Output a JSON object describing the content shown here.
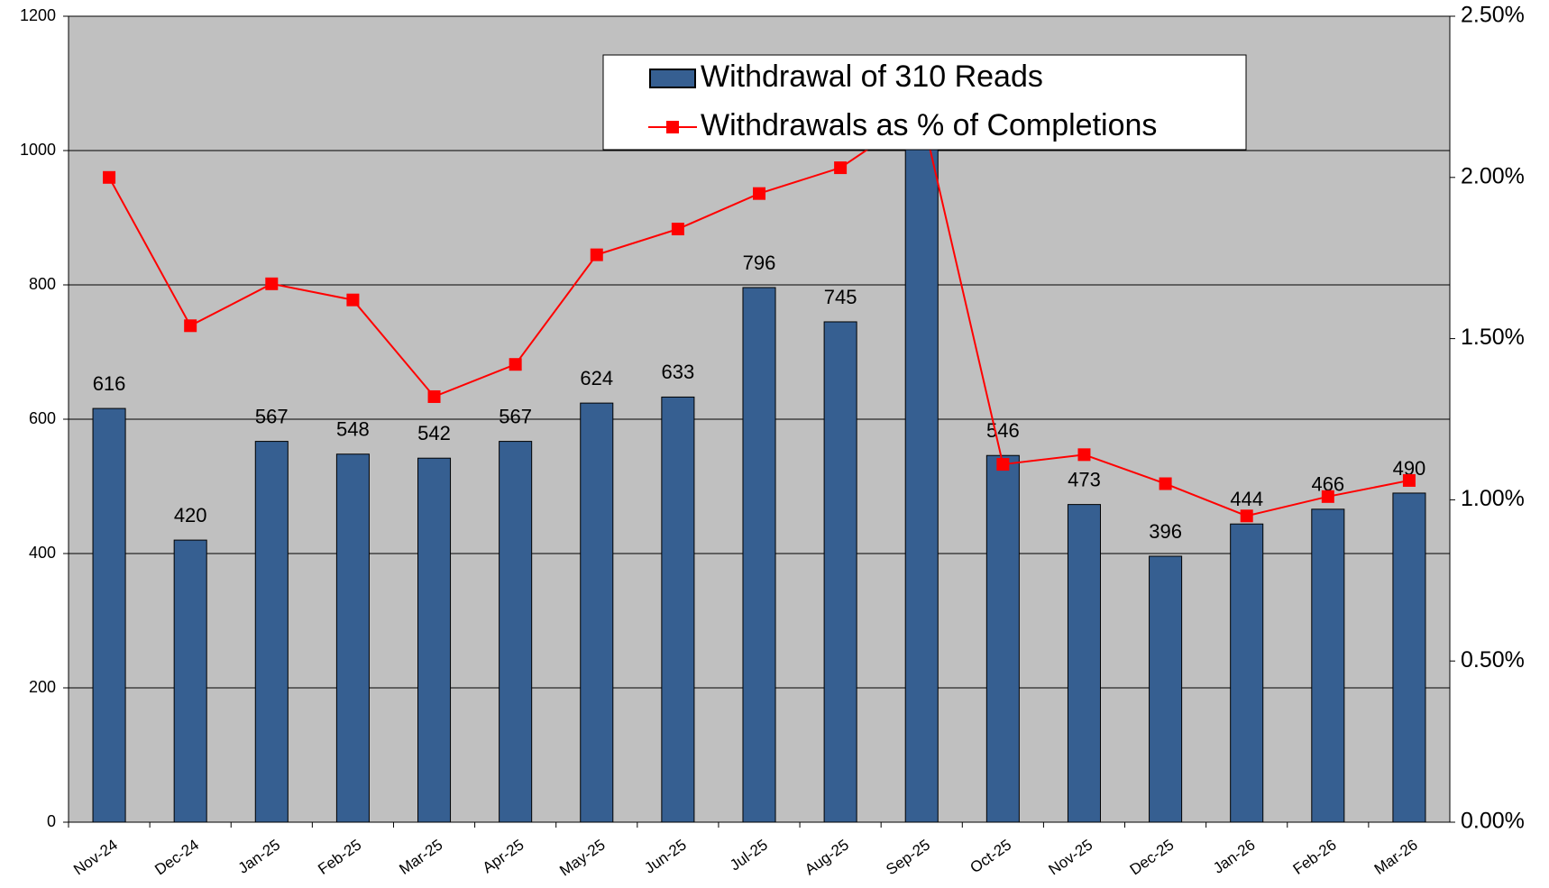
{
  "chart_data": {
    "type": "bar_line",
    "categories": [
      "Nov-24",
      "Dec-24",
      "Jan-25",
      "Feb-25",
      "Mar-25",
      "Apr-25",
      "May-25",
      "Jun-25",
      "Jul-25",
      "Aug-25",
      "Sep-25",
      "Oct-25",
      "Nov-25",
      "Dec-25",
      "Jan-26",
      "Feb-26",
      "Mar-26"
    ],
    "series": [
      {
        "name": "Withdrawal of 310 Reads",
        "type": "bar",
        "color": "#365f91",
        "values": [
          616,
          420,
          567,
          548,
          542,
          567,
          624,
          633,
          796,
          745,
          1050,
          546,
          473,
          396,
          444,
          466,
          490
        ]
      },
      {
        "name": "Withdrawals as % of Completions",
        "type": "line",
        "color": "#ff0000",
        "axis": "y2",
        "values": [
          2.0,
          1.54,
          1.67,
          1.62,
          1.32,
          1.42,
          1.76,
          1.84,
          1.95,
          2.03,
          2.2,
          1.11,
          1.14,
          1.05,
          0.95,
          1.01,
          1.06
        ]
      }
    ],
    "ylim": [
      0,
      1200
    ],
    "yticks": [
      0,
      200,
      400,
      600,
      800,
      1000,
      1200
    ],
    "y2lim": [
      0,
      2.5
    ],
    "y2ticks": [
      {
        "value": 0,
        "label": "0.00%"
      },
      {
        "value": 0.5,
        "label": "0.50%"
      },
      {
        "value": 1,
        "label": "1.00%"
      },
      {
        "value": 1.5,
        "label": "1.50%"
      },
      {
        "value": 2,
        "label": "2.00%"
      },
      {
        "value": 2.5,
        "label": "2.50%"
      }
    ],
    "grid": true,
    "legend": "top"
  }
}
